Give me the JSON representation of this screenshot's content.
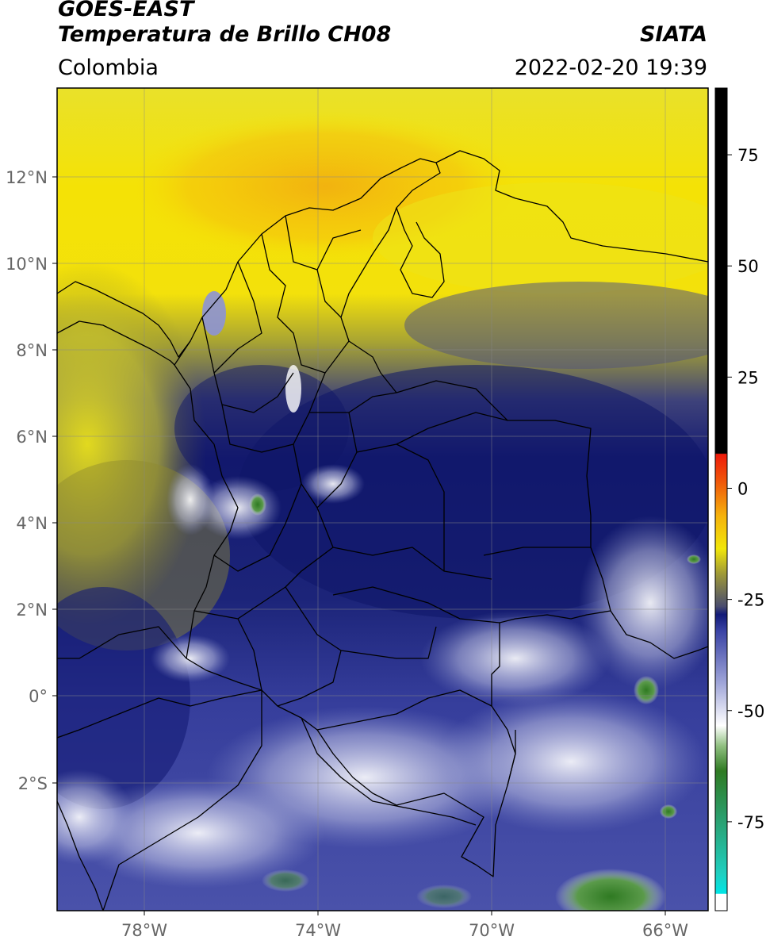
{
  "header": {
    "satellite": "GOES-EAST",
    "product": "Temperatura de Brillo CH08",
    "region": "Colombia",
    "source": "SIATA",
    "datetime": "2022-02-20 19:39"
  },
  "map": {
    "lat_ticks": [
      "12°N",
      "10°N",
      "8°N",
      "6°N",
      "4°N",
      "2°N",
      "0°",
      "2°S"
    ],
    "lon_ticks": [
      "78°W",
      "74°W",
      "70°W",
      "66°W"
    ],
    "extent": {
      "lon_min": -80,
      "lon_max": -65,
      "lat_min": -5,
      "lat_max": 14
    },
    "colors": {
      "warm_yellow": "#f4e206",
      "warm_orange": "#f2b60e",
      "olive": "#8d8a2e",
      "gray_blue": "#4c4f79",
      "navy": "#12196f",
      "blue": "#3a43a5",
      "light_blue": "#bfc3e3",
      "green": "#3a7d2a"
    }
  },
  "colorbar": {
    "ticks": [
      "75",
      "50",
      "25",
      "0",
      "-25",
      "-50",
      "-75"
    ],
    "tick_values": [
      75,
      50,
      25,
      0,
      -25,
      -50,
      -75
    ],
    "range": [
      -95,
      90
    ]
  }
}
